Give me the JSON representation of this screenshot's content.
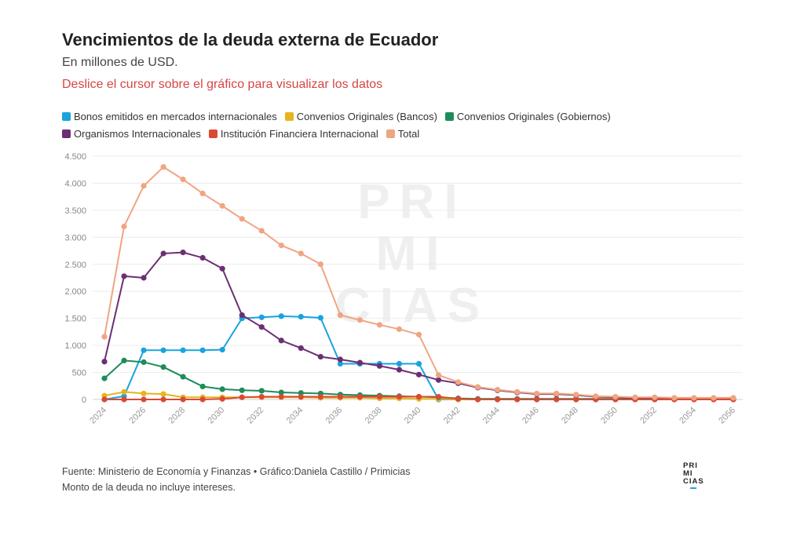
{
  "header": {
    "title": "Vencimientos de la deuda externa de Ecuador",
    "subtitle": "En millones de USD.",
    "hint": "Deslice el cursor sobre el gráfico para visualizar los datos"
  },
  "watermark": {
    "lines": [
      "PRI",
      "MI",
      "CIAS"
    ]
  },
  "footer": {
    "source": "Fuente: Ministerio de Economía y Finanzas • Gráfico:Daniela Castillo / Primicias",
    "note": "Monto de la deuda no incluye intereses."
  },
  "logo": {
    "lines": [
      "PRI",
      "MI",
      "CIAS"
    ]
  },
  "chart_data": {
    "type": "line",
    "title": "Vencimientos de la deuda externa de Ecuador",
    "ylabel": "En millones de USD.",
    "xlabel": "",
    "ylim": [
      0,
      4500
    ],
    "yticks": [
      0,
      500,
      1000,
      1500,
      2000,
      2500,
      3000,
      3500,
      4000,
      4500
    ],
    "ytick_labels": [
      "0",
      "500",
      "1.000",
      "1.500",
      "2.000",
      "2.500",
      "3.000",
      "3.500",
      "4.000",
      "4.500"
    ],
    "x": [
      2024,
      2025,
      2026,
      2027,
      2028,
      2029,
      2030,
      2031,
      2032,
      2033,
      2034,
      2035,
      2036,
      2037,
      2038,
      2039,
      2040,
      2041,
      2042,
      2043,
      2044,
      2045,
      2046,
      2047,
      2048,
      2049,
      2050,
      2051,
      2052,
      2053,
      2054,
      2055,
      2056
    ],
    "xticks": [
      2024,
      2026,
      2028,
      2030,
      2032,
      2034,
      2036,
      2038,
      2040,
      2042,
      2044,
      2046,
      2048,
      2050,
      2052,
      2054,
      2056
    ],
    "grid": true,
    "legend_position": "top-left",
    "series": [
      {
        "name": "Bonos emitidos en mercados internacionales",
        "color": "#1aa3dd",
        "values": [
          0,
          60,
          910,
          910,
          910,
          910,
          920,
          1500,
          1520,
          1540,
          1530,
          1510,
          660,
          660,
          660,
          660,
          660,
          0,
          0,
          0,
          0,
          0,
          0,
          0,
          0,
          0,
          0,
          0,
          0,
          0,
          0,
          0,
          0
        ]
      },
      {
        "name": "Convenios Originales (Bancos)",
        "color": "#e6b41f",
        "values": [
          70,
          140,
          110,
          100,
          40,
          40,
          40,
          40,
          40,
          40,
          40,
          30,
          30,
          30,
          20,
          20,
          10,
          10,
          0,
          0,
          0,
          0,
          0,
          0,
          0,
          0,
          0,
          0,
          0,
          0,
          0,
          0,
          0
        ]
      },
      {
        "name": "Convenios Originales (Gobiernos)",
        "color": "#1e8c5a",
        "values": [
          390,
          720,
          690,
          600,
          420,
          240,
          190,
          170,
          160,
          130,
          120,
          110,
          90,
          80,
          70,
          60,
          50,
          40,
          20,
          10,
          10,
          10,
          10,
          10,
          10,
          10,
          10,
          10,
          10,
          10,
          10,
          10,
          10
        ]
      },
      {
        "name": "Organismos Internacionales",
        "color": "#6b2f73",
        "values": [
          700,
          2280,
          2250,
          2700,
          2720,
          2620,
          2420,
          1560,
          1340,
          1090,
          950,
          790,
          740,
          680,
          620,
          550,
          460,
          360,
          300,
          220,
          170,
          130,
          100,
          100,
          80,
          50,
          40,
          30,
          30,
          20,
          20,
          20,
          20
        ]
      },
      {
        "name": "Institución Financiera Internacional",
        "color": "#d94a35",
        "values": [
          0,
          0,
          0,
          0,
          0,
          0,
          10,
          40,
          50,
          50,
          50,
          50,
          50,
          50,
          50,
          50,
          50,
          50,
          10,
          0,
          0,
          0,
          0,
          0,
          0,
          0,
          0,
          0,
          0,
          0,
          0,
          0,
          0
        ]
      },
      {
        "name": "Total",
        "color": "#f0a582",
        "values": [
          1160,
          3200,
          3950,
          4300,
          4070,
          3810,
          3580,
          3340,
          3120,
          2850,
          2700,
          2500,
          1560,
          1470,
          1380,
          1300,
          1200,
          450,
          320,
          230,
          180,
          140,
          110,
          110,
          90,
          60,
          50,
          40,
          40,
          30,
          30,
          30,
          30
        ]
      }
    ]
  }
}
